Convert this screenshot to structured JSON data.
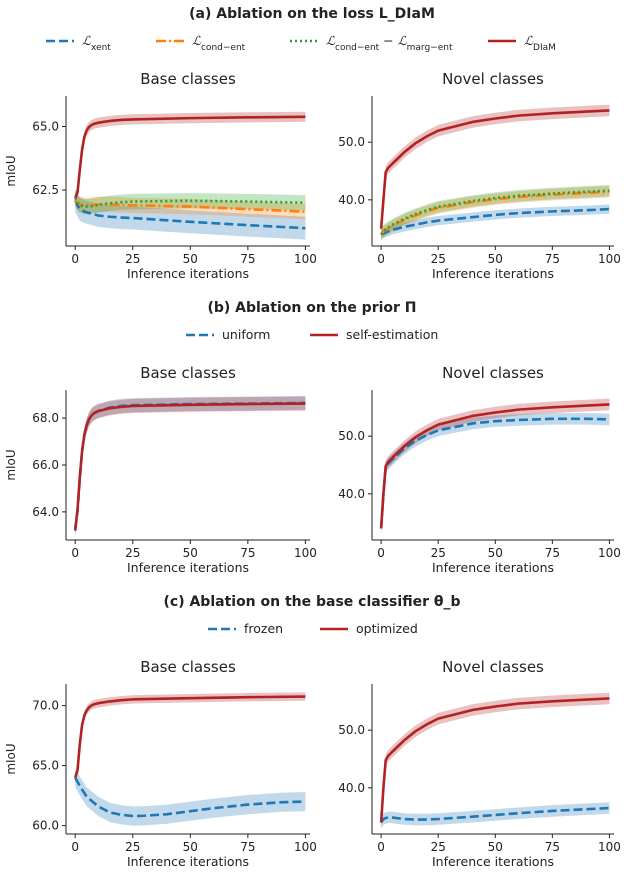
{
  "chart_data": [
    {
      "type": "line",
      "section_title": "(a) Ablation on the loss L_DIaM",
      "legend": [
        {
          "label": "L_xent",
          "color": "#1f77b4",
          "dash": "dashed"
        },
        {
          "label": "L_cond-ent",
          "color": "#ff7f0e",
          "dash": "dashdot"
        },
        {
          "label": "L_cond-ent − L_marg-ent",
          "color": "#2ca02c",
          "dash": "dotted"
        },
        {
          "label": "L_DIaM",
          "color": "#b22222",
          "dash": "solid"
        }
      ],
      "panels": [
        {
          "title": "Base classes",
          "xlabel": "Inference iterations",
          "ylabel": "mIoU",
          "xlim": [
            -4,
            102
          ],
          "ylim": [
            60.3,
            66.2
          ],
          "xticks": [
            0,
            25,
            50,
            75,
            100
          ],
          "yticks": [
            62.5,
            65.0
          ],
          "ytick_labels": [
            "62.5",
            "65.0"
          ],
          "series": [
            {
              "name": "L_xent",
              "color": "#1f77b4",
              "dash": "dashed",
              "band": 0.45,
              "x": [
                0,
                1,
                2,
                4,
                6,
                8,
                10,
                15,
                20,
                25,
                50,
                75,
                100
              ],
              "y": [
                62.1,
                61.9,
                61.75,
                61.65,
                61.6,
                61.55,
                61.5,
                61.45,
                61.42,
                61.4,
                61.25,
                61.12,
                61.0
              ]
            },
            {
              "name": "L_cond-ent",
              "color": "#ff7f0e",
              "dash": "dashdot",
              "band": 0.3,
              "x": [
                0,
                1,
                2,
                4,
                6,
                8,
                10,
                15,
                20,
                25,
                50,
                75,
                100
              ],
              "y": [
                62.1,
                62.0,
                61.95,
                61.9,
                61.9,
                61.92,
                61.93,
                61.93,
                61.92,
                61.9,
                61.85,
                61.75,
                61.65
              ]
            },
            {
              "name": "L_cond-ent − L_marg-ent",
              "color": "#2ca02c",
              "dash": "dotted",
              "band": 0.3,
              "x": [
                0,
                1,
                2,
                4,
                6,
                8,
                10,
                15,
                20,
                25,
                50,
                75,
                100
              ],
              "y": [
                62.2,
                62.0,
                61.9,
                61.85,
                61.85,
                61.88,
                61.92,
                61.98,
                62.02,
                62.05,
                62.08,
                62.05,
                62.0
              ]
            },
            {
              "name": "L_DIaM",
              "color": "#b22222",
              "dash": "solid",
              "band": 0.2,
              "x": [
                0,
                1,
                2,
                3,
                4,
                5,
                6,
                7,
                8,
                10,
                15,
                20,
                25,
                50,
                75,
                100
              ],
              "y": [
                62.2,
                62.4,
                63.3,
                64.1,
                64.6,
                64.85,
                64.98,
                65.05,
                65.1,
                65.15,
                65.22,
                65.26,
                65.28,
                65.33,
                65.36,
                65.38
              ]
            }
          ]
        },
        {
          "title": "Novel classes",
          "xlabel": "Inference iterations",
          "ylabel": "",
          "xlim": [
            -4,
            102
          ],
          "ylim": [
            32,
            58
          ],
          "xticks": [
            0,
            25,
            50,
            75,
            100
          ],
          "yticks": [
            40,
            50
          ],
          "ytick_labels": [
            "40.0",
            "50.0"
          ],
          "series": [
            {
              "name": "L_xent",
              "color": "#1f77b4",
              "dash": "dashed",
              "band": 0.8,
              "x": [
                0,
                1,
                3,
                5,
                10,
                15,
                20,
                25,
                40,
                50,
                60,
                75,
                90,
                100
              ],
              "y": [
                34,
                34.2,
                34.5,
                34.8,
                35.3,
                35.7,
                36.1,
                36.4,
                37.0,
                37.4,
                37.7,
                38.0,
                38.2,
                38.4
              ]
            },
            {
              "name": "L_cond-ent",
              "color": "#ff7f0e",
              "dash": "dashdot",
              "band": 1.0,
              "x": [
                0,
                1,
                3,
                5,
                10,
                15,
                20,
                25,
                40,
                50,
                60,
                75,
                90,
                100
              ],
              "y": [
                34,
                34.5,
                35.0,
                35.5,
                36.5,
                37.3,
                38.0,
                38.6,
                39.6,
                40.1,
                40.5,
                40.9,
                41.2,
                41.4
              ]
            },
            {
              "name": "L_cond-ent − L_marg-ent",
              "color": "#2ca02c",
              "dash": "dotted",
              "band": 1.0,
              "x": [
                0,
                1,
                3,
                5,
                10,
                15,
                20,
                25,
                40,
                50,
                60,
                75,
                90,
                100
              ],
              "y": [
                34,
                34.6,
                35.2,
                35.7,
                36.7,
                37.5,
                38.2,
                38.8,
                39.8,
                40.3,
                40.7,
                41.1,
                41.4,
                41.6
              ]
            },
            {
              "name": "L_DIaM",
              "color": "#b22222",
              "dash": "solid",
              "band": 1.0,
              "x": [
                0,
                1,
                2,
                3,
                5,
                10,
                15,
                20,
                25,
                40,
                50,
                60,
                75,
                90,
                100
              ],
              "y": [
                35,
                40,
                44.8,
                45.5,
                46.3,
                48.2,
                49.8,
                51.0,
                52.0,
                53.5,
                54.1,
                54.6,
                55.0,
                55.3,
                55.5
              ]
            }
          ]
        }
      ]
    },
    {
      "type": "line",
      "section_title": "(b) Ablation on the prior Π",
      "legend": [
        {
          "label": "uniform",
          "color": "#1f77b4",
          "dash": "dashed"
        },
        {
          "label": "self-estimation",
          "color": "#b22222",
          "dash": "solid"
        }
      ],
      "panels": [
        {
          "title": "Base classes",
          "xlabel": "Inference iterations",
          "ylabel": "mIoU",
          "xlim": [
            -4,
            102
          ],
          "ylim": [
            62.8,
            69.2
          ],
          "xticks": [
            0,
            25,
            50,
            75,
            100
          ],
          "yticks": [
            64,
            66,
            68
          ],
          "ytick_labels": [
            "64.0",
            "66.0",
            "68.0"
          ],
          "series": [
            {
              "name": "uniform",
              "color": "#1f77b4",
              "dash": "dashed",
              "band": 0.3,
              "x": [
                0,
                1,
                2,
                3,
                4,
                5,
                6,
                7,
                8,
                10,
                15,
                20,
                25,
                50,
                75,
                100
              ],
              "y": [
                63.3,
                64.0,
                65.4,
                66.6,
                67.3,
                67.7,
                67.95,
                68.1,
                68.2,
                68.3,
                68.45,
                68.52,
                68.55,
                68.6,
                68.62,
                68.65
              ]
            },
            {
              "name": "self-estimation",
              "color": "#b22222",
              "dash": "solid",
              "band": 0.3,
              "x": [
                0,
                1,
                2,
                3,
                4,
                5,
                6,
                7,
                8,
                10,
                15,
                20,
                25,
                50,
                75,
                100
              ],
              "y": [
                63.2,
                64.1,
                65.5,
                66.6,
                67.3,
                67.7,
                67.95,
                68.1,
                68.2,
                68.3,
                68.42,
                68.48,
                68.52,
                68.57,
                68.6,
                68.62
              ]
            }
          ]
        },
        {
          "title": "Novel classes",
          "xlabel": "Inference iterations",
          "ylabel": "",
          "xlim": [
            -4,
            102
          ],
          "ylim": [
            32,
            58
          ],
          "xticks": [
            0,
            25,
            50,
            75,
            100
          ],
          "yticks": [
            40,
            50
          ],
          "ytick_labels": [
            "40.0",
            "50.0"
          ],
          "series": [
            {
              "name": "uniform",
              "color": "#1f77b4",
              "dash": "dashed",
              "band": 1.0,
              "x": [
                0,
                1,
                2,
                3,
                5,
                10,
                15,
                20,
                25,
                40,
                50,
                60,
                75,
                90,
                100
              ],
              "y": [
                34,
                40,
                44.5,
                45.2,
                46.0,
                47.8,
                49.2,
                50.2,
                51.0,
                52.2,
                52.6,
                52.8,
                53.0,
                53.0,
                52.9
              ]
            },
            {
              "name": "self-estimation",
              "color": "#b22222",
              "dash": "solid",
              "band": 1.0,
              "x": [
                0,
                1,
                2,
                3,
                5,
                10,
                15,
                20,
                25,
                40,
                50,
                60,
                75,
                90,
                100
              ],
              "y": [
                34,
                40,
                44.8,
                45.5,
                46.3,
                48.2,
                49.8,
                51.0,
                52.0,
                53.5,
                54.1,
                54.6,
                55.0,
                55.3,
                55.5
              ]
            }
          ]
        }
      ]
    },
    {
      "type": "line",
      "section_title": "(c) Ablation on the base classifier θ_b",
      "legend": [
        {
          "label": "frozen",
          "color": "#1f77b4",
          "dash": "dashed"
        },
        {
          "label": "optimized",
          "color": "#b22222",
          "dash": "solid"
        }
      ],
      "panels": [
        {
          "title": "Base classes",
          "xlabel": "Inference iterations",
          "ylabel": "mIoU",
          "xlim": [
            -4,
            102
          ],
          "ylim": [
            59.3,
            71.8
          ],
          "xticks": [
            0,
            25,
            50,
            75,
            100
          ],
          "yticks": [
            60,
            65,
            70
          ],
          "ytick_labels": [
            "60.0",
            "65.0",
            "70.0"
          ],
          "series": [
            {
              "name": "frozen",
              "color": "#1f77b4",
              "dash": "dashed",
              "band": 0.8,
              "x": [
                0,
                2,
                5,
                10,
                15,
                20,
                25,
                30,
                40,
                50,
                60,
                75,
                90,
                100
              ],
              "y": [
                64.0,
                63.3,
                62.4,
                61.6,
                61.1,
                60.9,
                60.8,
                60.82,
                60.95,
                61.2,
                61.45,
                61.75,
                61.95,
                62.0
              ]
            },
            {
              "name": "optimized",
              "color": "#b22222",
              "dash": "solid",
              "band": 0.35,
              "x": [
                0,
                1,
                2,
                3,
                4,
                5,
                6,
                7,
                8,
                10,
                15,
                20,
                25,
                50,
                75,
                100
              ],
              "y": [
                64.0,
                64.6,
                66.8,
                68.4,
                69.2,
                69.6,
                69.85,
                70.0,
                70.1,
                70.2,
                70.35,
                70.45,
                70.52,
                70.62,
                70.7,
                70.75
              ]
            }
          ]
        },
        {
          "title": "Novel classes",
          "xlabel": "Inference iterations",
          "ylabel": "",
          "xlim": [
            -4,
            102
          ],
          "ylim": [
            32,
            58
          ],
          "xticks": [
            0,
            25,
            50,
            75,
            100
          ],
          "yticks": [
            40,
            50
          ],
          "ytick_labels": [
            "40.0",
            "50.0"
          ],
          "series": [
            {
              "name": "frozen",
              "color": "#1f77b4",
              "dash": "dashed",
              "band": 1.0,
              "x": [
                0,
                1,
                3,
                5,
                10,
                15,
                20,
                25,
                40,
                50,
                60,
                75,
                90,
                100
              ],
              "y": [
                34,
                34.6,
                34.9,
                34.85,
                34.6,
                34.5,
                34.5,
                34.6,
                35.0,
                35.3,
                35.6,
                36.0,
                36.3,
                36.5
              ]
            },
            {
              "name": "optimized",
              "color": "#b22222",
              "dash": "solid",
              "band": 1.0,
              "x": [
                0,
                1,
                2,
                3,
                5,
                10,
                15,
                20,
                25,
                40,
                50,
                60,
                75,
                90,
                100
              ],
              "y": [
                34,
                40,
                44.8,
                45.5,
                46.3,
                48.2,
                49.8,
                51.0,
                52.0,
                53.5,
                54.1,
                54.6,
                55.0,
                55.3,
                55.5
              ]
            }
          ]
        }
      ]
    }
  ]
}
